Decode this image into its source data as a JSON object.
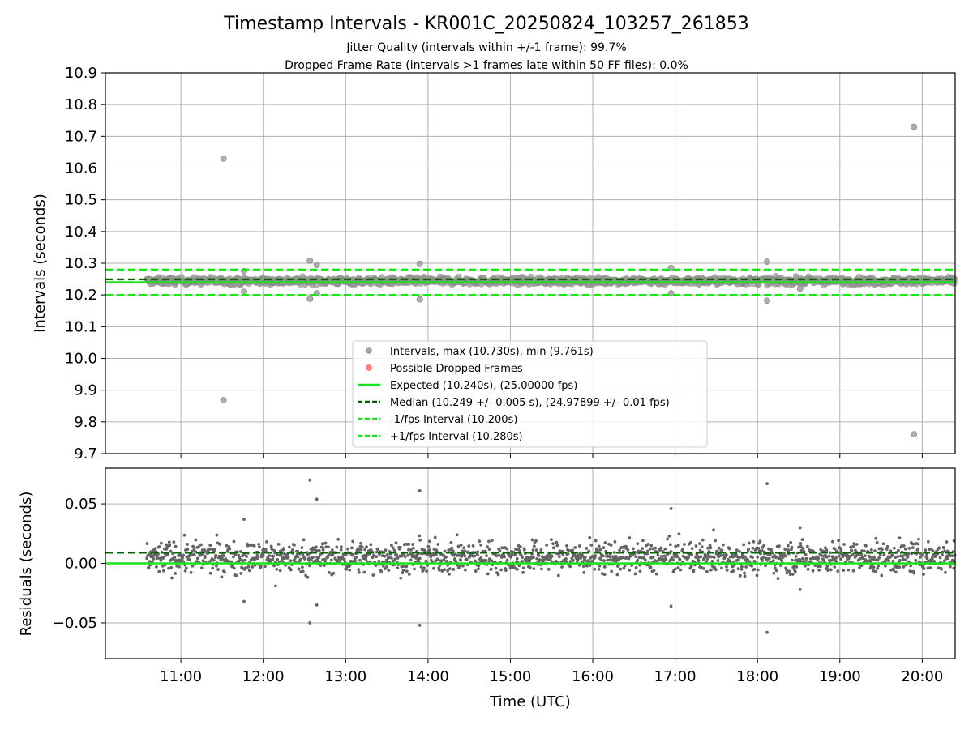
{
  "chart_data": [
    {
      "type": "scatter",
      "title": "Timestamp Intervals - KR001C_20250824_103257_261853",
      "subtitle_lines": [
        "Jitter Quality (intervals within +/-1 frame): 99.7%",
        "Dropped Frame Rate (intervals >1 frames late within 50 FF files): 0.0%"
      ],
      "ylabel": "Intervals (seconds)",
      "ylim": [
        9.7,
        10.9
      ],
      "yticks": [
        9.7,
        9.8,
        9.9,
        10.0,
        10.1,
        10.2,
        10.3,
        10.4,
        10.5,
        10.6,
        10.7,
        10.8,
        10.9
      ],
      "ytick_labels": [
        "9.7",
        "9.8",
        "9.9",
        "10.0",
        "10.1",
        "10.2",
        "10.3",
        "10.4",
        "10.5",
        "10.6",
        "10.7",
        "10.8",
        "10.9"
      ],
      "xlim": [
        "10:05",
        "20:24"
      ],
      "grid": true,
      "legend_position": "lower-center",
      "series": [
        {
          "name": "Intervals, max (10.730s), min (9.761s)",
          "kind": "scatter",
          "color": "#808080",
          "band": {
            "x_start": "10:35",
            "x_end": "20:24",
            "center": 10.244,
            "spread": 0.012
          },
          "outliers": [
            {
              "x": "11:31",
              "y": 10.63
            },
            {
              "x": "11:31",
              "y": 9.868
            },
            {
              "x": "11:46",
              "y": 10.275
            },
            {
              "x": "11:46",
              "y": 10.21
            },
            {
              "x": "12:34",
              "y": 10.308
            },
            {
              "x": "12:34",
              "y": 10.188
            },
            {
              "x": "12:39",
              "y": 10.295
            },
            {
              "x": "12:39",
              "y": 10.205
            },
            {
              "x": "13:54",
              "y": 10.298
            },
            {
              "x": "13:54",
              "y": 10.186
            },
            {
              "x": "16:57",
              "y": 10.285
            },
            {
              "x": "16:57",
              "y": 10.205
            },
            {
              "x": "18:07",
              "y": 10.305
            },
            {
              "x": "18:07",
              "y": 10.182
            },
            {
              "x": "18:31",
              "y": 10.22
            },
            {
              "x": "19:54",
              "y": 10.73
            },
            {
              "x": "19:54",
              "y": 9.761
            }
          ]
        },
        {
          "name": "Possible Dropped Frames",
          "kind": "scatter",
          "color": "#ff4d4d",
          "points": []
        },
        {
          "name": "Expected (10.240s), (25.00000 fps)",
          "kind": "hline",
          "y": 10.24,
          "color": "#19e619",
          "style": "solid"
        },
        {
          "name": "Median (10.249 +/- 0.005 s), (24.97899 +/- 0.01 fps)",
          "kind": "hline",
          "y": 10.249,
          "color": "#006400",
          "style": "dashed"
        },
        {
          "name": "-1/fps Interval (10.200s)",
          "kind": "hline",
          "y": 10.2,
          "color": "#19e619",
          "style": "dashed"
        },
        {
          "name": "+1/fps Interval (10.280s)",
          "kind": "hline",
          "y": 10.28,
          "color": "#19e619",
          "style": "dashed"
        }
      ]
    },
    {
      "type": "scatter",
      "ylabel": "Residuals (seconds)",
      "xlabel": "Time (UTC)",
      "ylim": [
        -0.08,
        0.08
      ],
      "yticks": [
        -0.05,
        0.0,
        0.05
      ],
      "ytick_labels": [
        "−0.05",
        "0.00",
        "0.05"
      ],
      "xlim": [
        "10:05",
        "20:24"
      ],
      "xticks": [
        "11:00",
        "12:00",
        "13:00",
        "14:00",
        "15:00",
        "16:00",
        "17:00",
        "18:00",
        "19:00",
        "20:00"
      ],
      "grid": true,
      "series": [
        {
          "name": "Residuals",
          "kind": "scatter",
          "color": "#646464",
          "band": {
            "x_start": "10:35",
            "x_end": "20:24",
            "center": 0.005,
            "spread": 0.012
          },
          "outliers": [
            {
              "x": "11:46",
              "y": 0.037
            },
            {
              "x": "11:46",
              "y": -0.032
            },
            {
              "x": "12:09",
              "y": -0.019
            },
            {
              "x": "12:34",
              "y": 0.07
            },
            {
              "x": "12:34",
              "y": -0.05
            },
            {
              "x": "12:39",
              "y": 0.054
            },
            {
              "x": "12:39",
              "y": -0.035
            },
            {
              "x": "13:54",
              "y": 0.061
            },
            {
              "x": "13:54",
              "y": -0.052
            },
            {
              "x": "16:57",
              "y": 0.046
            },
            {
              "x": "16:57",
              "y": -0.036
            },
            {
              "x": "17:28",
              "y": 0.028
            },
            {
              "x": "18:07",
              "y": 0.067
            },
            {
              "x": "18:07",
              "y": -0.058
            },
            {
              "x": "18:31",
              "y": 0.03
            },
            {
              "x": "18:31",
              "y": -0.022
            }
          ]
        },
        {
          "name": "Expected",
          "kind": "hline",
          "y": 0.0,
          "color": "#19e619",
          "style": "solid"
        },
        {
          "name": "Median",
          "kind": "hline",
          "y": 0.009,
          "color": "#006400",
          "style": "dashed"
        }
      ]
    }
  ]
}
